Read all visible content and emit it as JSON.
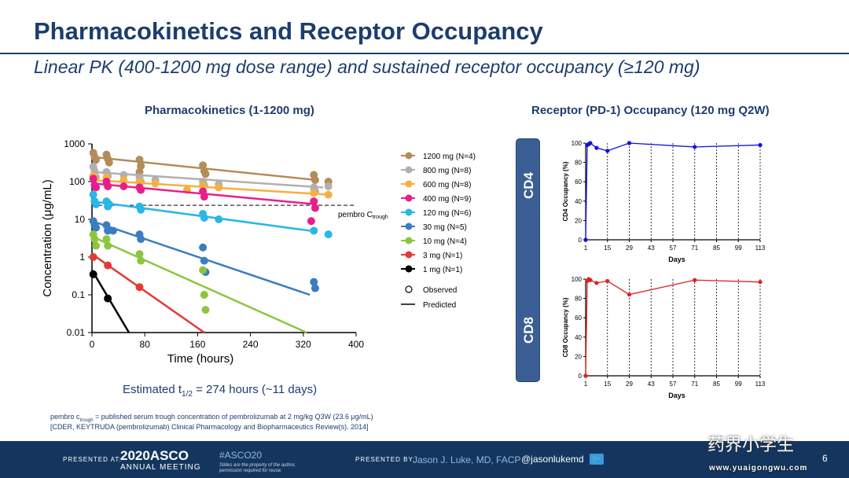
{
  "slide": {
    "title": "Pharmacokinetics and Receptor Occupancy",
    "subtitle": "Linear PK (400-1200 mg dose range) and sustained receptor occupancy (≥120 mg)",
    "pk_title": "Pharmacokinetics (1-1200 mg)",
    "ro_title": "Receptor (PD-1) Occupancy (120 mg Q2W)",
    "halflife_pre": "Estimated t",
    "halflife_sub": "1/2",
    "halflife_post": " = 274 hours (~11 days)",
    "footnote1": "pembro c",
    "footnote1_sub": "trough",
    "footnote1_post": " = published serum trough concentration of pembrolizumab at 2 mg/kg Q3W (23.6 μg/mL)",
    "footnote2": "[CDER, KEYTRUDA (pembrolizumab) Clinical Pharmacology and Biopharmaceutics Review(s). 2014]",
    "cd4_label": "CD4",
    "cd8_label": "CD8",
    "page_number": "6"
  },
  "footer": {
    "presented_at": "PRESENTED AT:",
    "asco_line1": "2020ASCO",
    "asco_line2": "ANNUAL MEETING",
    "hashtag": "#ASCO20",
    "rights": "Slides are the property of the author, permission required for reuse.",
    "presented_by": "PRESENTED BY:",
    "presenter": "Jason J. Luke, MD, FACP",
    "handle": "@jasonlukemd",
    "watermark": "药界小学生",
    "watermark_url": "www.yuaigongwu.com"
  },
  "colors": {
    "navy": "#1d3d6e",
    "c1200": "#b48c5a",
    "c800": "#b0b0b0",
    "c600": "#f5b041",
    "c400": "#e91e8c",
    "c120": "#29b6e8",
    "c30": "#3a7dc0",
    "c10": "#8cc63f",
    "c3": "#e53935",
    "c1": "#000000",
    "cd4": "#1010e0",
    "cd8": "#e02020"
  },
  "chart_data": [
    {
      "type": "scatter",
      "title": "Pharmacokinetics (1-1200 mg)",
      "xlabel": "Time (hours)",
      "ylabel": "Concentration (μg/mL)",
      "xlim": [
        0,
        400
      ],
      "ylim": [
        0.01,
        1000
      ],
      "yscale": "log",
      "x_ticks": [
        0,
        80,
        160,
        240,
        320,
        400
      ],
      "y_ticks": [
        "0.01",
        "0.1",
        "1",
        "10",
        "100",
        "1000"
      ],
      "reference_line": {
        "y": 23.6,
        "label": "pembro C",
        "label_sub": "trough"
      },
      "legend_placement": "right",
      "legend_extra": [
        "Observed",
        "Predicted"
      ],
      "series": [
        {
          "name": "1200 mg (N=4)",
          "color": "#b48c5a",
          "line": [
            [
              0,
              450
            ],
            [
              340,
              110
            ]
          ],
          "points": [
            [
              2,
              580
            ],
            [
              4,
              450
            ],
            [
              6,
              380
            ],
            [
              22,
              520
            ],
            [
              24,
              400
            ],
            [
              26,
              320
            ],
            [
              72,
              380
            ],
            [
              74,
              260
            ],
            [
              72,
              180
            ],
            [
              168,
              270
            ],
            [
              170,
              190
            ],
            [
              172,
              160
            ],
            [
              336,
              150
            ],
            [
              338,
              110
            ],
            [
              358,
              100
            ]
          ]
        },
        {
          "name": "800 mg (N=8)",
          "color": "#b0b0b0",
          "line": [
            [
              0,
              180
            ],
            [
              350,
              70
            ]
          ],
          "points": [
            [
              2,
              250
            ],
            [
              4,
              190
            ],
            [
              6,
              130
            ],
            [
              22,
              180
            ],
            [
              24,
              140
            ],
            [
              48,
              150
            ],
            [
              72,
              130
            ],
            [
              74,
              100
            ],
            [
              96,
              110
            ],
            [
              168,
              100
            ],
            [
              170,
              80
            ],
            [
              192,
              85
            ],
            [
              336,
              70
            ],
            [
              338,
              55
            ],
            [
              358,
              75
            ]
          ]
        },
        {
          "name": "600 mg (N=8)",
          "color": "#f5b041",
          "line": [
            [
              0,
              110
            ],
            [
              360,
              45
            ]
          ],
          "points": [
            [
              2,
              140
            ],
            [
              4,
              120
            ],
            [
              22,
              130
            ],
            [
              48,
              110
            ],
            [
              72,
              100
            ],
            [
              96,
              90
            ],
            [
              144,
              60
            ],
            [
              168,
              80
            ],
            [
              192,
              70
            ],
            [
              336,
              50
            ],
            [
              358,
              45
            ]
          ]
        },
        {
          "name": "400 mg (N=9)",
          "color": "#e91e8c",
          "line": [
            [
              0,
              90
            ],
            [
              340,
              25
            ]
          ],
          "points": [
            [
              2,
              120
            ],
            [
              4,
              80
            ],
            [
              6,
              70
            ],
            [
              22,
              100
            ],
            [
              24,
              75
            ],
            [
              48,
              75
            ],
            [
              72,
              70
            ],
            [
              74,
              60
            ],
            [
              168,
              55
            ],
            [
              170,
              40
            ],
            [
              336,
              30
            ],
            [
              338,
              20
            ],
            [
              332,
              9
            ]
          ]
        },
        {
          "name": "120 mg (N=6)",
          "color": "#29b6e8",
          "line": [
            [
              0,
              30
            ],
            [
              330,
              5
            ]
          ],
          "points": [
            [
              2,
              45
            ],
            [
              4,
              30
            ],
            [
              6,
              25
            ],
            [
              22,
              30
            ],
            [
              24,
              22
            ],
            [
              26,
              25
            ],
            [
              72,
              22
            ],
            [
              74,
              18
            ],
            [
              168,
              14
            ],
            [
              170,
              11
            ],
            [
              192,
              10
            ],
            [
              336,
              5
            ],
            [
              358,
              4
            ]
          ]
        },
        {
          "name": "30 mg (N=5)",
          "color": "#3a7dc0",
          "line": [
            [
              0,
              9
            ],
            [
              330,
              0.1
            ]
          ],
          "points": [
            [
              2,
              9
            ],
            [
              4,
              7
            ],
            [
              6,
              6
            ],
            [
              22,
              7
            ],
            [
              24,
              5
            ],
            [
              32,
              5
            ],
            [
              72,
              4
            ],
            [
              74,
              3
            ],
            [
              168,
              1.8
            ],
            [
              170,
              0.8
            ],
            [
              172,
              0.4
            ],
            [
              336,
              0.22
            ],
            [
              338,
              0.15
            ]
          ]
        },
        {
          "name": "10 mg (N=4)",
          "color": "#8cc63f",
          "line": [
            [
              0,
              3.5
            ],
            [
              325,
              0.01
            ]
          ],
          "points": [
            [
              2,
              4
            ],
            [
              4,
              3
            ],
            [
              6,
              2
            ],
            [
              22,
              3
            ],
            [
              24,
              2
            ],
            [
              72,
              1.2
            ],
            [
              74,
              0.8
            ],
            [
              168,
              0.45
            ],
            [
              170,
              0.1
            ],
            [
              172,
              0.04
            ]
          ]
        },
        {
          "name": "3 mg (N=1)",
          "color": "#e53935",
          "line": [
            [
              0,
              1.2
            ],
            [
              170,
              0.01
            ]
          ],
          "points": [
            [
              2,
              1
            ],
            [
              24,
              0.6
            ],
            [
              72,
              0.16
            ]
          ]
        },
        {
          "name": "1 mg (N=1)",
          "color": "#000000",
          "line": [
            [
              0,
              0.45
            ],
            [
              56,
              0.01
            ]
          ],
          "points": [
            [
              2,
              0.35
            ],
            [
              24,
              0.08
            ]
          ]
        }
      ]
    },
    {
      "type": "line",
      "title": "CD4",
      "xlabel": "Days",
      "ylabel": "CD4 Occupancy (%)",
      "xlim": [
        1,
        113
      ],
      "ylim": [
        0,
        100
      ],
      "x_ticks": [
        1,
        15,
        29,
        43,
        57,
        71,
        85,
        99,
        113
      ],
      "y_ticks": [
        0,
        20,
        40,
        60,
        80,
        100
      ],
      "dosing_days": [
        1,
        15,
        29,
        43,
        57,
        71,
        85,
        99,
        113
      ],
      "series": [
        {
          "color": "#1010e0",
          "x": [
            1,
            2,
            3,
            4,
            8,
            15,
            29,
            71,
            113
          ],
          "values": [
            0,
            98,
            99,
            100,
            95,
            92,
            100,
            96,
            98
          ]
        }
      ]
    },
    {
      "type": "line",
      "title": "CD8",
      "xlabel": "Days",
      "ylabel": "CD8 Occupancy (%)",
      "xlim": [
        1,
        113
      ],
      "ylim": [
        0,
        100
      ],
      "x_ticks": [
        1,
        15,
        29,
        43,
        57,
        71,
        85,
        99,
        113
      ],
      "y_ticks": [
        0,
        20,
        40,
        60,
        80,
        100
      ],
      "dosing_days": [
        1,
        15,
        29,
        43,
        57,
        71,
        85,
        99,
        113
      ],
      "series": [
        {
          "color": "#e02020",
          "x": [
            1,
            2,
            3,
            4,
            8,
            15,
            29,
            71,
            113
          ],
          "values": [
            0,
            98,
            100,
            99,
            96,
            98,
            84,
            99,
            97
          ]
        }
      ]
    }
  ]
}
